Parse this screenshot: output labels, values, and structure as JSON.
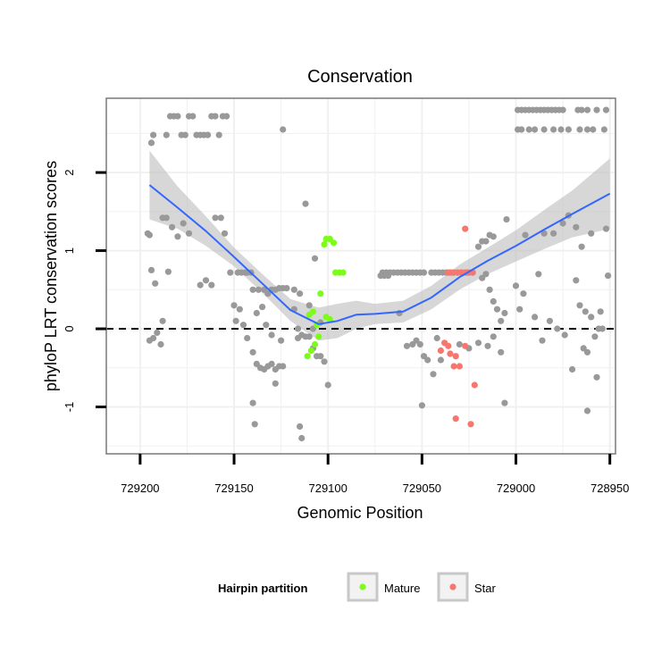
{
  "chart_data": {
    "type": "scatter",
    "title": "Conservation",
    "xlabel": "Genomic Position",
    "ylabel": "phyloP LRT conservation scores",
    "x_reversed": true,
    "xlim": [
      729218,
      728947
    ],
    "ylim": [
      -1.6,
      2.95
    ],
    "x_ticks": [
      729200,
      729150,
      729100,
      729050,
      729000,
      728950
    ],
    "x_tick_labels": [
      "729200",
      "729150",
      "729100",
      "729050",
      "729000",
      "728950"
    ],
    "y_ticks": [
      -1,
      0,
      1,
      2
    ],
    "y_tick_labels": [
      "-1",
      "0",
      "1",
      "2"
    ],
    "reference_line": {
      "y": 0,
      "style": "dashed"
    },
    "grid": true,
    "colors": {
      "other": "#999999",
      "mature": "#7CFC1A",
      "star": "#F8766D",
      "smooth_line": "#3366FF",
      "ribbon": "#BDBDBD",
      "panel_border": "#808080",
      "grid": "#F0F0F0"
    },
    "legend": {
      "title": "Hairpin partition",
      "position": "bottom",
      "entries": [
        {
          "label": "Mature",
          "series": "mature"
        },
        {
          "label": "Star",
          "series": "star"
        }
      ]
    },
    "smooth": {
      "x": [
        729195,
        729180,
        729165,
        729150,
        729135,
        729120,
        729105,
        729095,
        729085,
        729075,
        729060,
        729045,
        729030,
        729015,
        729000,
        728985,
        728970,
        728950
      ],
      "y": [
        1.84,
        1.55,
        1.25,
        0.92,
        0.58,
        0.24,
        0.06,
        0.1,
        0.18,
        0.19,
        0.22,
        0.4,
        0.66,
        0.87,
        1.06,
        1.27,
        1.47,
        1.73
      ],
      "lower": [
        1.4,
        1.28,
        1.06,
        0.8,
        0.46,
        0.1,
        -0.15,
        -0.12,
        0.0,
        0.06,
        0.08,
        0.25,
        0.5,
        0.7,
        0.86,
        1.02,
        1.17,
        1.28
      ],
      "upper": [
        2.28,
        1.82,
        1.44,
        1.04,
        0.7,
        0.38,
        0.27,
        0.32,
        0.36,
        0.32,
        0.36,
        0.55,
        0.82,
        1.04,
        1.26,
        1.52,
        1.77,
        2.18
      ]
    },
    "series": [
      {
        "name": "other",
        "points": [
          [
            729196,
            1.22
          ],
          [
            729195,
            1.2
          ],
          [
            729194,
            0.75
          ],
          [
            729192,
            0.58
          ],
          [
            729195,
            -0.15
          ],
          [
            729193,
            -0.12
          ],
          [
            729191,
            -0.05
          ],
          [
            729189,
            -0.2
          ],
          [
            729188,
            0.1
          ],
          [
            729194,
            2.38
          ],
          [
            729193,
            2.48
          ],
          [
            729186,
            2.48
          ],
          [
            729184,
            2.72
          ],
          [
            729182,
            2.72
          ],
          [
            729180,
            2.72
          ],
          [
            729178,
            2.48
          ],
          [
            729176,
            2.48
          ],
          [
            729174,
            2.72
          ],
          [
            729172,
            2.72
          ],
          [
            729170,
            2.48
          ],
          [
            729168,
            2.48
          ],
          [
            729166,
            2.48
          ],
          [
            729164,
            2.48
          ],
          [
            729162,
            2.72
          ],
          [
            729160,
            2.72
          ],
          [
            729158,
            2.48
          ],
          [
            729156,
            2.72
          ],
          [
            729154,
            2.72
          ],
          [
            729188,
            1.42
          ],
          [
            729186,
            1.42
          ],
          [
            729183,
            1.3
          ],
          [
            729180,
            1.18
          ],
          [
            729177,
            1.35
          ],
          [
            729174,
            1.22
          ],
          [
            729185,
            0.73
          ],
          [
            729168,
            0.56
          ],
          [
            729165,
            0.62
          ],
          [
            729162,
            0.56
          ],
          [
            729160,
            1.42
          ],
          [
            729157,
            1.42
          ],
          [
            729155,
            1.22
          ],
          [
            729152,
            0.72
          ],
          [
            729148,
            0.72
          ],
          [
            729146,
            0.72
          ],
          [
            729144,
            0.72
          ],
          [
            729143,
            0.72
          ],
          [
            729141,
            0.72
          ],
          [
            729150,
            0.3
          ],
          [
            729149,
            0.1
          ],
          [
            729147,
            0.25
          ],
          [
            729145,
            0.05
          ],
          [
            729143,
            -0.12
          ],
          [
            729140,
            -0.3
          ],
          [
            729138,
            -0.45
          ],
          [
            729136,
            -0.5
          ],
          [
            729134,
            -0.52
          ],
          [
            729132,
            -0.48
          ],
          [
            729130,
            -0.45
          ],
          [
            729128,
            -0.52
          ],
          [
            729126,
            -0.48
          ],
          [
            729124,
            -0.48
          ],
          [
            729128,
            -0.7
          ],
          [
            729140,
            0.5
          ],
          [
            729137,
            0.5
          ],
          [
            729134,
            0.5
          ],
          [
            729132,
            0.45
          ],
          [
            729130,
            0.5
          ],
          [
            729128,
            0.5
          ],
          [
            729126,
            0.52
          ],
          [
            729124,
            0.52
          ],
          [
            729122,
            0.52
          ],
          [
            729118,
            0.5
          ],
          [
            729115,
            0.45
          ],
          [
            729138,
            0.2
          ],
          [
            729135,
            0.28
          ],
          [
            729133,
            0.05
          ],
          [
            729130,
            -0.08
          ],
          [
            729125,
            -0.15
          ],
          [
            729140,
            -0.95
          ],
          [
            729139,
            -1.22
          ],
          [
            729124,
            2.55
          ],
          [
            729112,
            1.6
          ],
          [
            729107,
            0.9
          ],
          [
            729118,
            0.25
          ],
          [
            729116,
            0.0
          ],
          [
            729114,
            -0.08
          ],
          [
            729112,
            -0.1
          ],
          [
            729110,
            -0.1
          ],
          [
            729108,
            -0.25
          ],
          [
            729106,
            -0.35
          ],
          [
            729104,
            -0.35
          ],
          [
            729102,
            -0.42
          ],
          [
            729100,
            -0.72
          ],
          [
            729116,
            -0.12
          ],
          [
            729115,
            -1.25
          ],
          [
            729114,
            -1.4
          ],
          [
            729110,
            0.3
          ],
          [
            729108,
            0.0
          ],
          [
            729104,
            0.08
          ],
          [
            729071,
            0.72
          ],
          [
            729069,
            0.72
          ],
          [
            729067,
            0.72
          ],
          [
            729065,
            0.72
          ],
          [
            729063,
            0.72
          ],
          [
            729061,
            0.72
          ],
          [
            729059,
            0.72
          ],
          [
            729057,
            0.72
          ],
          [
            729055,
            0.72
          ],
          [
            729053,
            0.72
          ],
          [
            729051,
            0.72
          ],
          [
            729049,
            0.72
          ],
          [
            729072,
            0.68
          ],
          [
            729070,
            0.68
          ],
          [
            729068,
            0.68
          ],
          [
            729062,
            0.2
          ],
          [
            729058,
            -0.22
          ],
          [
            729055,
            -0.2
          ],
          [
            729053,
            -0.15
          ],
          [
            729051,
            -0.2
          ],
          [
            729049,
            -0.35
          ],
          [
            729047,
            -0.4
          ],
          [
            729044,
            -0.58
          ],
          [
            729040,
            -0.4
          ],
          [
            729042,
            -0.12
          ],
          [
            729050,
            -0.98
          ],
          [
            729045,
            0.72
          ],
          [
            729043,
            0.72
          ],
          [
            729041,
            0.72
          ],
          [
            729039,
            0.72
          ],
          [
            729037,
            0.72
          ],
          [
            729035,
            0.72
          ],
          [
            729033,
            0.72
          ],
          [
            729031,
            0.72
          ],
          [
            729029,
            0.72
          ],
          [
            729027,
            0.72
          ],
          [
            729025,
            0.72
          ],
          [
            729023,
            0.72
          ],
          [
            729018,
            0.65
          ],
          [
            729016,
            0.7
          ],
          [
            729014,
            0.5
          ],
          [
            729012,
            0.35
          ],
          [
            729010,
            0.25
          ],
          [
            729008,
            0.1
          ],
          [
            729006,
            0.2
          ],
          [
            729030,
            -0.2
          ],
          [
            729025,
            -0.25
          ],
          [
            729020,
            -0.18
          ],
          [
            729015,
            -0.22
          ],
          [
            729012,
            -0.1
          ],
          [
            729008,
            -0.3
          ],
          [
            729006,
            -0.95
          ],
          [
            729020,
            1.05
          ],
          [
            729018,
            1.12
          ],
          [
            729016,
            1.12
          ],
          [
            729014,
            1.2
          ],
          [
            729012,
            1.18
          ],
          [
            729005,
            1.4
          ],
          [
            729000,
            0.55
          ],
          [
            728998,
            0.25
          ],
          [
            728999,
            2.55
          ],
          [
            728997,
            2.55
          ],
          [
            728993,
            2.55
          ],
          [
            728990,
            2.55
          ],
          [
            728985,
            2.55
          ],
          [
            728980,
            2.55
          ],
          [
            728976,
            2.55
          ],
          [
            728972,
            2.55
          ],
          [
            728966,
            2.55
          ],
          [
            728962,
            2.55
          ],
          [
            728959,
            2.55
          ],
          [
            728953,
            2.55
          ],
          [
            728999,
            2.8
          ],
          [
            728997,
            2.8
          ],
          [
            728995,
            2.8
          ],
          [
            728993,
            2.8
          ],
          [
            728991,
            2.8
          ],
          [
            728989,
            2.8
          ],
          [
            728987,
            2.8
          ],
          [
            728985,
            2.8
          ],
          [
            728983,
            2.8
          ],
          [
            728981,
            2.8
          ],
          [
            728979,
            2.8
          ],
          [
            728977,
            2.8
          ],
          [
            728975,
            2.8
          ],
          [
            728967,
            2.8
          ],
          [
            728965,
            2.8
          ],
          [
            728962,
            2.8
          ],
          [
            728957,
            2.8
          ],
          [
            728952,
            2.8
          ],
          [
            728995,
            1.2
          ],
          [
            728988,
            0.7
          ],
          [
            728985,
            1.22
          ],
          [
            728980,
            1.22
          ],
          [
            728975,
            1.35
          ],
          [
            728972,
            1.45
          ],
          [
            728968,
            1.3
          ],
          [
            728965,
            1.05
          ],
          [
            728960,
            1.22
          ],
          [
            728952,
            1.28
          ],
          [
            728951,
            0.68
          ],
          [
            728996,
            0.45
          ],
          [
            728990,
            0.15
          ],
          [
            728986,
            -0.15
          ],
          [
            728982,
            0.1
          ],
          [
            728978,
            0.0
          ],
          [
            728974,
            -0.08
          ],
          [
            728970,
            -0.52
          ],
          [
            728966,
            0.3
          ],
          [
            728963,
            0.22
          ],
          [
            728960,
            0.15
          ],
          [
            728958,
            -0.1
          ],
          [
            728956,
            0.0
          ],
          [
            728955,
            0.22
          ],
          [
            728954,
            0.0
          ],
          [
            728968,
            0.62
          ],
          [
            728964,
            -0.25
          ],
          [
            728962,
            -0.3
          ],
          [
            728957,
            -0.62
          ],
          [
            728962,
            -1.05
          ]
        ]
      },
      {
        "name": "mature",
        "points": [
          [
            729110,
            0.18
          ],
          [
            729108,
            0.22
          ],
          [
            729106,
            0.05
          ],
          [
            729104,
            0.45
          ],
          [
            729102,
            1.08
          ],
          [
            729101,
            1.15
          ],
          [
            729099,
            1.15
          ],
          [
            729097,
            1.1
          ],
          [
            729096,
            0.72
          ],
          [
            729094,
            0.72
          ],
          [
            729092,
            0.72
          ],
          [
            729105,
            -0.1
          ],
          [
            729107,
            -0.2
          ],
          [
            729109,
            -0.28
          ],
          [
            729111,
            -0.35
          ],
          [
            729101,
            0.15
          ],
          [
            729099,
            0.12
          ]
        ]
      },
      {
        "name": "star",
        "points": [
          [
            729036,
            0.72
          ],
          [
            729034,
            0.72
          ],
          [
            729031,
            0.72
          ],
          [
            729029,
            0.72
          ],
          [
            729027,
            1.28
          ],
          [
            729026,
            0.72
          ],
          [
            729023,
            0.72
          ],
          [
            729038,
            -0.18
          ],
          [
            729035,
            -0.32
          ],
          [
            729032,
            -0.35
          ],
          [
            729030,
            -0.48
          ],
          [
            729033,
            -0.48
          ],
          [
            729036,
            -0.22
          ],
          [
            729040,
            -0.28
          ],
          [
            729032,
            -1.15
          ],
          [
            729024,
            -1.22
          ],
          [
            729022,
            -0.72
          ],
          [
            729027,
            -0.22
          ]
        ]
      }
    ]
  }
}
